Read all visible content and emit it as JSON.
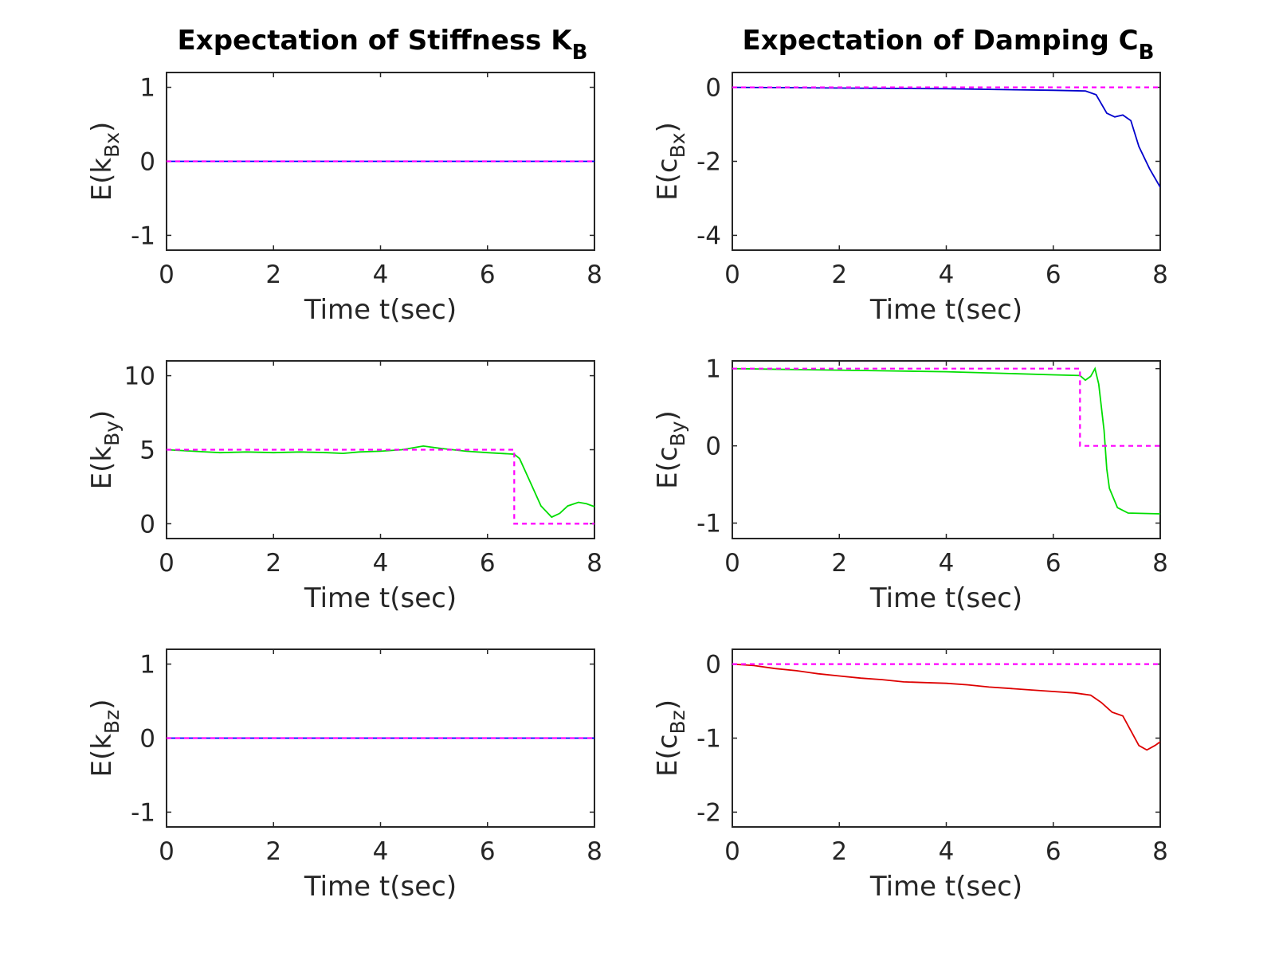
{
  "chart_data": [
    {
      "type": "line",
      "title": "Expectation of Stiffness K",
      "title_sub": "B",
      "ylabel_main": "E(k",
      "ylabel_sub": "Bx",
      "ylabel_close": ")",
      "xlabel": "Time t(sec)",
      "xlim": [
        0,
        8
      ],
      "ylim": [
        -1.2,
        1.2
      ],
      "xticks": [
        0,
        2,
        4,
        6,
        8
      ],
      "yticks": [
        -1,
        0,
        1
      ],
      "series": [
        {
          "color": "#0000ff",
          "dash": false,
          "points": [
            [
              0,
              0
            ],
            [
              8,
              0
            ]
          ]
        },
        {
          "color": "#ff00ff",
          "dash": true,
          "points": [
            [
              0,
              0
            ],
            [
              8,
              0
            ]
          ]
        }
      ]
    },
    {
      "type": "line",
      "title": "Expectation of Damping C",
      "title_sub": "B",
      "ylabel_main": "E(c",
      "ylabel_sub": "Bx",
      "ylabel_close": ")",
      "xlabel": "Time t(sec)",
      "xlim": [
        0,
        8
      ],
      "ylim": [
        -4.4,
        0.4
      ],
      "xticks": [
        0,
        2,
        4,
        6,
        8
      ],
      "yticks": [
        -4,
        -2,
        0
      ],
      "series": [
        {
          "color": "#0000cc",
          "dash": false,
          "points": [
            [
              0,
              0
            ],
            [
              1,
              -0.01
            ],
            [
              2,
              -0.02
            ],
            [
              3,
              -0.03
            ],
            [
              4,
              -0.04
            ],
            [
              5,
              -0.06
            ],
            [
              6,
              -0.08
            ],
            [
              6.6,
              -0.1
            ],
            [
              6.8,
              -0.2
            ],
            [
              7.0,
              -0.7
            ],
            [
              7.15,
              -0.8
            ],
            [
              7.3,
              -0.75
            ],
            [
              7.45,
              -0.9
            ],
            [
              7.6,
              -1.6
            ],
            [
              7.8,
              -2.2
            ],
            [
              8,
              -2.7
            ]
          ]
        },
        {
          "color": "#ff00ff",
          "dash": true,
          "points": [
            [
              0,
              0
            ],
            [
              8,
              0
            ]
          ]
        }
      ]
    },
    {
      "type": "line",
      "ylabel_main": "E(k",
      "ylabel_sub": "By",
      "ylabel_close": ")",
      "xlabel": "Time t(sec)",
      "xlim": [
        0,
        8
      ],
      "ylim": [
        -1,
        11
      ],
      "xticks": [
        0,
        2,
        4,
        6,
        8
      ],
      "yticks": [
        0,
        5,
        10
      ],
      "series": [
        {
          "color": "#00dd00",
          "dash": false,
          "points": [
            [
              0,
              5
            ],
            [
              0.5,
              4.9
            ],
            [
              1,
              4.8
            ],
            [
              1.5,
              4.85
            ],
            [
              2,
              4.8
            ],
            [
              2.5,
              4.85
            ],
            [
              3,
              4.8
            ],
            [
              3.3,
              4.75
            ],
            [
              3.6,
              4.85
            ],
            [
              4,
              4.9
            ],
            [
              4.4,
              5.0
            ],
            [
              4.8,
              5.25
            ],
            [
              5.1,
              5.1
            ],
            [
              5.6,
              4.9
            ],
            [
              6,
              4.8
            ],
            [
              6.5,
              4.7
            ],
            [
              6.6,
              4.4
            ],
            [
              6.8,
              2.8
            ],
            [
              7.0,
              1.2
            ],
            [
              7.2,
              0.45
            ],
            [
              7.35,
              0.7
            ],
            [
              7.5,
              1.2
            ],
            [
              7.7,
              1.45
            ],
            [
              7.85,
              1.35
            ],
            [
              8,
              1.15
            ]
          ]
        },
        {
          "color": "#ff00ff",
          "dash": true,
          "points": [
            [
              0,
              5
            ],
            [
              6.5,
              5
            ],
            [
              6.5,
              0
            ],
            [
              8,
              0
            ]
          ]
        }
      ]
    },
    {
      "type": "line",
      "ylabel_main": "E(c",
      "ylabel_sub": "By",
      "ylabel_close": ")",
      "xlabel": "Time t(sec)",
      "xlim": [
        0,
        8
      ],
      "ylim": [
        -1.2,
        1.1
      ],
      "xticks": [
        0,
        2,
        4,
        6,
        8
      ],
      "yticks": [
        -1,
        0,
        1
      ],
      "series": [
        {
          "color": "#00dd00",
          "dash": false,
          "points": [
            [
              0,
              1
            ],
            [
              1,
              0.99
            ],
            [
              2,
              0.98
            ],
            [
              3,
              0.97
            ],
            [
              4,
              0.96
            ],
            [
              5,
              0.94
            ],
            [
              6,
              0.92
            ],
            [
              6.5,
              0.91
            ],
            [
              6.6,
              0.85
            ],
            [
              6.7,
              0.9
            ],
            [
              6.78,
              1.0
            ],
            [
              6.85,
              0.8
            ],
            [
              6.95,
              0.2
            ],
            [
              7.0,
              -0.3
            ],
            [
              7.05,
              -0.55
            ],
            [
              7.2,
              -0.8
            ],
            [
              7.4,
              -0.87
            ],
            [
              8,
              -0.88
            ]
          ]
        },
        {
          "color": "#ff00ff",
          "dash": true,
          "points": [
            [
              0,
              1
            ],
            [
              6.5,
              1
            ],
            [
              6.5,
              0
            ],
            [
              8,
              0
            ]
          ]
        }
      ]
    },
    {
      "type": "line",
      "ylabel_main": "E(k",
      "ylabel_sub": "Bz",
      "ylabel_close": ")",
      "xlabel": "Time t(sec)",
      "xlim": [
        0,
        8
      ],
      "ylim": [
        -1.2,
        1.2
      ],
      "xticks": [
        0,
        2,
        4,
        6,
        8
      ],
      "yticks": [
        -1,
        0,
        1
      ],
      "series": [
        {
          "color": "#0000ff",
          "dash": false,
          "points": [
            [
              0,
              0
            ],
            [
              8,
              0
            ]
          ]
        },
        {
          "color": "#ff00ff",
          "dash": true,
          "points": [
            [
              0,
              0
            ],
            [
              8,
              0
            ]
          ]
        }
      ]
    },
    {
      "type": "line",
      "ylabel_main": "E(c",
      "ylabel_sub": "Bz",
      "ylabel_close": ")",
      "xlabel": "Time t(sec)",
      "xlim": [
        0,
        8
      ],
      "ylim": [
        -2.2,
        0.2
      ],
      "xticks": [
        0,
        2,
        4,
        6,
        8
      ],
      "yticks": [
        -2,
        -1,
        0
      ],
      "series": [
        {
          "color": "#dd0000",
          "dash": false,
          "points": [
            [
              0,
              0
            ],
            [
              0.4,
              -0.02
            ],
            [
              0.8,
              -0.06
            ],
            [
              1.2,
              -0.09
            ],
            [
              1.6,
              -0.13
            ],
            [
              2,
              -0.16
            ],
            [
              2.4,
              -0.19
            ],
            [
              2.8,
              -0.21
            ],
            [
              3.2,
              -0.24
            ],
            [
              3.6,
              -0.25
            ],
            [
              4,
              -0.26
            ],
            [
              4.4,
              -0.28
            ],
            [
              4.8,
              -0.31
            ],
            [
              5.2,
              -0.33
            ],
            [
              5.6,
              -0.35
            ],
            [
              6,
              -0.37
            ],
            [
              6.4,
              -0.39
            ],
            [
              6.7,
              -0.42
            ],
            [
              6.9,
              -0.52
            ],
            [
              7.1,
              -0.65
            ],
            [
              7.3,
              -0.7
            ],
            [
              7.45,
              -0.9
            ],
            [
              7.6,
              -1.1
            ],
            [
              7.75,
              -1.16
            ],
            [
              7.9,
              -1.1
            ],
            [
              8,
              -1.05
            ]
          ]
        },
        {
          "color": "#ff00ff",
          "dash": true,
          "points": [
            [
              0,
              0
            ],
            [
              8,
              0
            ]
          ]
        }
      ]
    }
  ]
}
